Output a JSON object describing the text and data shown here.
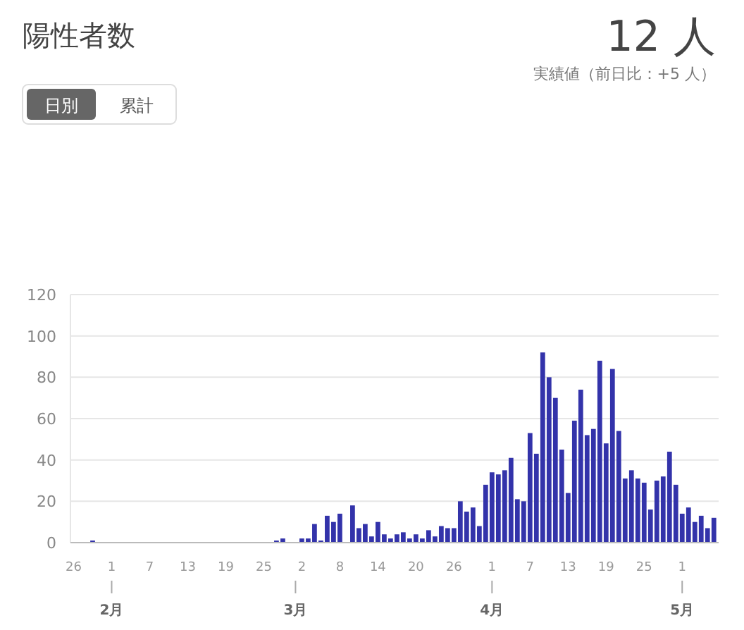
{
  "chart_data": {
    "type": "bar",
    "title": "陽性者数",
    "subtitle": "実績値（前日比：+5 人）",
    "annotations": [
      "12 人",
      "日別",
      "累計",
      {
        "text": "2月",
        "x": "--02-01"
      },
      {
        "text": "3月",
        "x": "--03-01"
      },
      {
        "text": "4月",
        "x": "--04-01"
      },
      {
        "text": "5月",
        "x": "--05-01"
      }
    ],
    "x": [
      "--01-26",
      "--01-27",
      "--01-28",
      "--01-29",
      "--01-30",
      "--01-31",
      "--02-01",
      "--02-02",
      "--02-03",
      "--02-04",
      "--02-05",
      "--02-06",
      "--02-07",
      "--02-08",
      "--02-09",
      "--02-10",
      "--02-11",
      "--02-12",
      "--02-13",
      "--02-14",
      "--02-15",
      "--02-16",
      "--02-17",
      "--02-18",
      "--02-19",
      "--02-20",
      "--02-21",
      "--02-22",
      "--02-23",
      "--02-24",
      "--02-25",
      "--02-26",
      "--02-27",
      "--02-28",
      "--02-29",
      "--03-01",
      "--03-02",
      "--03-03",
      "--03-04",
      "--03-05",
      "--03-06",
      "--03-07",
      "--03-08",
      "--03-09",
      "--03-10",
      "--03-11",
      "--03-12",
      "--03-13",
      "--03-14",
      "--03-15",
      "--03-16",
      "--03-17",
      "--03-18",
      "--03-19",
      "--03-20",
      "--03-21",
      "--03-22",
      "--03-23",
      "--03-24",
      "--03-25",
      "--03-26",
      "--03-27",
      "--03-28",
      "--03-29",
      "--03-30",
      "--03-31",
      "--04-01",
      "--04-02",
      "--04-03",
      "--04-04",
      "--04-05",
      "--04-06",
      "--04-07",
      "--04-08",
      "--04-09",
      "--04-10",
      "--04-11",
      "--04-12",
      "--04-13",
      "--04-14",
      "--04-15",
      "--04-16",
      "--04-17",
      "--04-18",
      "--04-19",
      "--04-20",
      "--04-21",
      "--04-22",
      "--04-23",
      "--04-24",
      "--04-25",
      "--04-26",
      "--04-27",
      "--04-28",
      "--04-29",
      "--04-30",
      "--05-01",
      "--05-02",
      "--05-03",
      "--05-04",
      "--05-05",
      "--05-06"
    ],
    "values": [
      0,
      0,
      0,
      1,
      0,
      0,
      0,
      0,
      0,
      0,
      0,
      0,
      0,
      0,
      0,
      0,
      0,
      0,
      0,
      0,
      0,
      0,
      0,
      0,
      0,
      0,
      0,
      0,
      0,
      0,
      0,
      0,
      1,
      2,
      0,
      0,
      2,
      2,
      9,
      1,
      13,
      10,
      14,
      0,
      18,
      7,
      9,
      3,
      10,
      4,
      2,
      4,
      5,
      2,
      4,
      2,
      6,
      3,
      8,
      7,
      7,
      20,
      15,
      17,
      8,
      28,
      34,
      33,
      35,
      41,
      21,
      20,
      53,
      43,
      92,
      80,
      70,
      45,
      24,
      59,
      74,
      52,
      55,
      88,
      48,
      84,
      54,
      31,
      35,
      31,
      29,
      16,
      30,
      32,
      44,
      28,
      14,
      17,
      10,
      13,
      7,
      12
    ],
    "color": "#3333aa",
    "xlim": [
      "--01-25T12:00",
      "--05-06T18:00"
    ],
    "xticks": [
      {
        "value": "--01-26",
        "label": "26"
      },
      {
        "value": "--02-01",
        "label": "1"
      },
      {
        "value": "--02-07",
        "label": "7"
      },
      {
        "value": "--02-13",
        "label": "13"
      },
      {
        "value": "--02-19",
        "label": "19"
      },
      {
        "value": "--02-25",
        "label": "25"
      },
      {
        "value": "--03-02",
        "label": "2"
      },
      {
        "value": "--03-08",
        "label": "8"
      },
      {
        "value": "--03-14",
        "label": "14"
      },
      {
        "value": "--03-20",
        "label": "20"
      },
      {
        "value": "--03-26",
        "label": "26"
      },
      {
        "value": "--04-01",
        "label": "1"
      },
      {
        "value": "--04-07",
        "label": "7"
      },
      {
        "value": "--04-13",
        "label": "13"
      },
      {
        "value": "--04-19",
        "label": "19"
      },
      {
        "value": "--04-25",
        "label": "25"
      },
      {
        "value": "--05-01",
        "label": "1"
      }
    ],
    "ylim": [
      0,
      120
    ],
    "yticks": [
      0,
      20,
      40,
      60,
      80,
      100,
      120
    ],
    "grid": "y"
  }
}
